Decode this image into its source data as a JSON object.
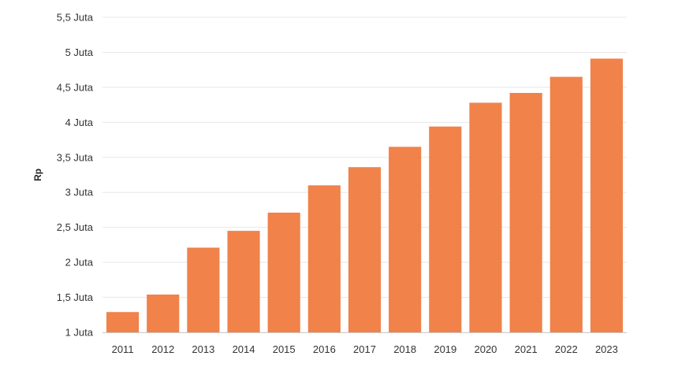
{
  "chart_data": {
    "type": "bar",
    "title": "",
    "xlabel": "",
    "ylabel": "Rp",
    "categories": [
      "2011",
      "2012",
      "2013",
      "2014",
      "2015",
      "2016",
      "2017",
      "2018",
      "2019",
      "2020",
      "2021",
      "2022",
      "2023"
    ],
    "values": [
      1.29,
      1.54,
      2.21,
      2.45,
      2.71,
      3.1,
      3.36,
      3.65,
      3.94,
      4.28,
      4.42,
      4.65,
      4.91
    ],
    "value_unit": "Juta",
    "ylim": [
      1,
      5.5
    ],
    "yticks": [
      1,
      1.5,
      2,
      2.5,
      3,
      3.5,
      4,
      4.5,
      5,
      5.5
    ],
    "ytick_labels": [
      "1 Juta",
      "1,5 Juta",
      "2 Juta",
      "2,5 Juta",
      "3 Juta",
      "3,5 Juta",
      "4 Juta",
      "4,5 Juta",
      "5 Juta",
      "5,5 Juta"
    ],
    "grid": true,
    "legend": "none",
    "colors": {
      "bar": "#f0824a",
      "grid": "#e8e8e8",
      "axis": "#cccccc"
    }
  }
}
